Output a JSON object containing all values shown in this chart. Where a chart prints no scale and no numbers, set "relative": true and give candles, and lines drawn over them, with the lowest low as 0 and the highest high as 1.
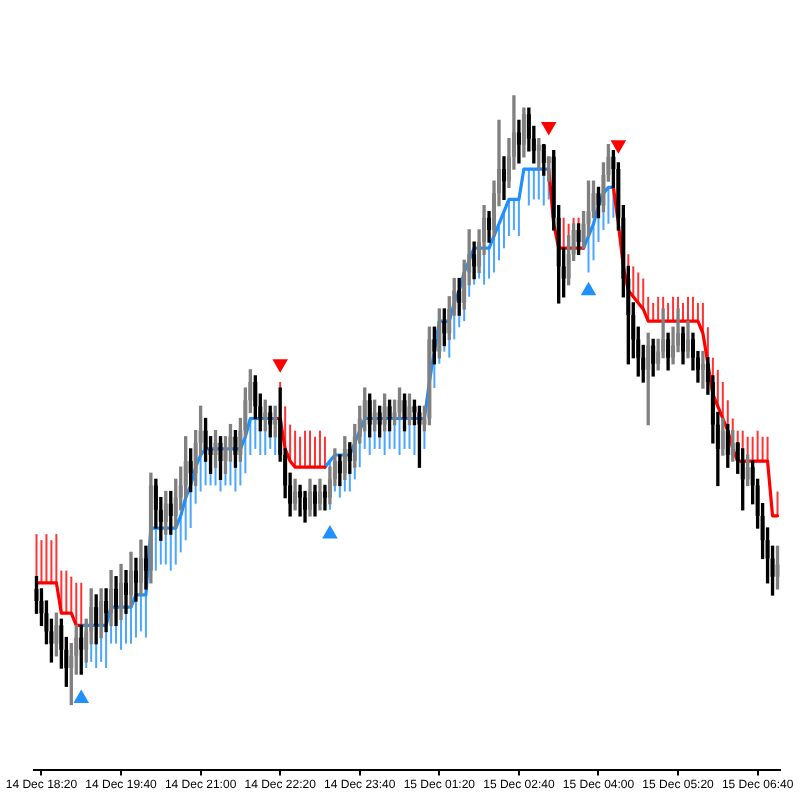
{
  "chart_data": {
    "type": "candlestick",
    "relative": true,
    "categories": [
      null,
      "14 Dec 18:20",
      null,
      null,
      null,
      null,
      null,
      null,
      null,
      null,
      null,
      null,
      null,
      null,
      null,
      null,
      null,
      "14 Dec 19:40",
      null,
      null,
      null,
      null,
      null,
      null,
      null,
      null,
      null,
      null,
      null,
      null,
      null,
      null,
      null,
      "14 Dec 21:00",
      null,
      null,
      null,
      null,
      null,
      null,
      null,
      null,
      null,
      null,
      null,
      null,
      null,
      null,
      null,
      "14 Dec 22:20",
      null,
      null,
      null,
      null,
      null,
      null,
      null,
      null,
      null,
      null,
      null,
      null,
      null,
      null,
      null,
      "14 Dec 23:40",
      null,
      null,
      null,
      null,
      null,
      null,
      null,
      null,
      null,
      null,
      null,
      null,
      null,
      null,
      null,
      "15 Dec 01:20",
      null,
      null,
      null,
      null,
      null,
      null,
      null,
      null,
      null,
      null,
      null,
      null,
      null,
      null,
      null,
      "15 Dec 02:40",
      null,
      null,
      null,
      null,
      null,
      null,
      null,
      null,
      null,
      null,
      null,
      null,
      null,
      null,
      null,
      "15 Dec 04:00",
      null,
      null,
      null,
      null,
      null,
      null,
      null,
      null,
      null,
      null,
      null,
      null,
      null,
      null,
      null,
      "15 Dec 05:20",
      null,
      null,
      null,
      null,
      null,
      null,
      null,
      null,
      null,
      null,
      null,
      null,
      null,
      null,
      null,
      "15 Dec 06:40",
      null,
      null,
      null,
      null
    ],
    "ohlc": [
      [
        0.19,
        0.21,
        0.15,
        0.17
      ],
      [
        0.17,
        0.19,
        0.13,
        0.15
      ],
      [
        0.15,
        0.17,
        0.1,
        0.12
      ],
      [
        0.12,
        0.14,
        0.07,
        0.1
      ],
      [
        0.1,
        0.15,
        0.08,
        0.13
      ],
      [
        0.13,
        0.14,
        0.06,
        0.09
      ],
      [
        0.09,
        0.11,
        0.03,
        0.06
      ],
      [
        0.06,
        0.1,
        0,
        0.08
      ],
      [
        0.08,
        0.13,
        0.05,
        0.11
      ],
      [
        0.11,
        0.13,
        0.05,
        0.09
      ],
      [
        0.09,
        0.14,
        0.07,
        0.12
      ],
      [
        0.12,
        0.19,
        0.1,
        0.16
      ],
      [
        0.16,
        0.18,
        0.1,
        0.13
      ],
      [
        0.13,
        0.19,
        0.11,
        0.17
      ],
      [
        0.17,
        0.19,
        0.12,
        0.15
      ],
      [
        0.15,
        0.22,
        0.13,
        0.19
      ],
      [
        0.19,
        0.21,
        0.13,
        0.16
      ],
      [
        0.16,
        0.23,
        0.14,
        0.2
      ],
      [
        0.2,
        0.22,
        0.15,
        0.18
      ],
      [
        0.18,
        0.25,
        0.16,
        0.22
      ],
      [
        0.22,
        0.24,
        0.17,
        0.2
      ],
      [
        0.2,
        0.27,
        0.18,
        0.24
      ],
      [
        0.24,
        0.26,
        0.19,
        0.22
      ],
      [
        0.22,
        0.38,
        0.2,
        0.36
      ],
      [
        0.36,
        0.37,
        0.29,
        0.32
      ],
      [
        0.32,
        0.34,
        0.27,
        0.3
      ],
      [
        0.3,
        0.35,
        0.28,
        0.33
      ],
      [
        0.33,
        0.35,
        0.28,
        0.31
      ],
      [
        0.31,
        0.37,
        0.29,
        0.34
      ],
      [
        0.34,
        0.39,
        0.32,
        0.36
      ],
      [
        0.36,
        0.44,
        0.34,
        0.4
      ],
      [
        0.4,
        0.42,
        0.35,
        0.38
      ],
      [
        0.38,
        0.45,
        0.36,
        0.43
      ],
      [
        0.43,
        0.49,
        0.41,
        0.45
      ],
      [
        0.45,
        0.47,
        0.4,
        0.42
      ],
      [
        0.42,
        0.44,
        0.38,
        0.41
      ],
      [
        0.41,
        0.45,
        0.39,
        0.43
      ],
      [
        0.43,
        0.44,
        0.37,
        0.4
      ],
      [
        0.4,
        0.44,
        0.38,
        0.42
      ],
      [
        0.42,
        0.46,
        0.4,
        0.44
      ],
      [
        0.44,
        0.45,
        0.39,
        0.41
      ],
      [
        0.41,
        0.47,
        0.4,
        0.45
      ],
      [
        0.45,
        0.52,
        0.44,
        0.5
      ],
      [
        0.5,
        0.55,
        0.48,
        0.53
      ],
      [
        0.53,
        0.54,
        0.47,
        0.49
      ],
      [
        0.49,
        0.51,
        0.45,
        0.47
      ],
      [
        0.47,
        0.5,
        0.45,
        0.48
      ],
      [
        0.48,
        0.49,
        0.44,
        0.46
      ],
      [
        0.46,
        0.49,
        0.44,
        0.47
      ],
      [
        0.47,
        0.52,
        0.4,
        0.41
      ],
      [
        0.41,
        0.42,
        0.34,
        0.36
      ],
      [
        0.36,
        0.38,
        0.31,
        0.33
      ],
      [
        0.33,
        0.37,
        0.32,
        0.35
      ],
      [
        0.35,
        0.36,
        0.31,
        0.34
      ],
      [
        0.34,
        0.35,
        0.3,
        0.32
      ],
      [
        0.32,
        0.37,
        0.31,
        0.35
      ],
      [
        0.35,
        0.36,
        0.31,
        0.33
      ],
      [
        0.33,
        0.37,
        0.32,
        0.35
      ],
      [
        0.35,
        0.36,
        0.32,
        0.34
      ],
      [
        0.34,
        0.39,
        0.33,
        0.37
      ],
      [
        0.37,
        0.42,
        0.36,
        0.4
      ],
      [
        0.4,
        0.41,
        0.36,
        0.38
      ],
      [
        0.38,
        0.44,
        0.37,
        0.42
      ],
      [
        0.42,
        0.43,
        0.38,
        0.4
      ],
      [
        0.4,
        0.46,
        0.39,
        0.44
      ],
      [
        0.44,
        0.49,
        0.43,
        0.47
      ],
      [
        0.47,
        0.52,
        0.45,
        0.5
      ],
      [
        0.5,
        0.51,
        0.44,
        0.46
      ],
      [
        0.46,
        0.5,
        0.45,
        0.48
      ],
      [
        0.48,
        0.49,
        0.44,
        0.46
      ],
      [
        0.46,
        0.51,
        0.45,
        0.49
      ],
      [
        0.49,
        0.5,
        0.45,
        0.47
      ],
      [
        0.47,
        0.5,
        0.46,
        0.48
      ],
      [
        0.48,
        0.52,
        0.47,
        0.5
      ],
      [
        0.5,
        0.51,
        0.45,
        0.47
      ],
      [
        0.47,
        0.51,
        0.46,
        0.49
      ],
      [
        0.49,
        0.5,
        0.46,
        0.48
      ],
      [
        0.48,
        0.49,
        0.39,
        0.46
      ],
      [
        0.46,
        0.49,
        0.45,
        0.47
      ],
      [
        0.47,
        0.62,
        0.46,
        0.6
      ],
      [
        0.6,
        0.62,
        0.56,
        0.58
      ],
      [
        0.58,
        0.65,
        0.57,
        0.63
      ],
      [
        0.63,
        0.65,
        0.59,
        0.61
      ],
      [
        0.61,
        0.67,
        0.6,
        0.65
      ],
      [
        0.65,
        0.7,
        0.64,
        0.68
      ],
      [
        0.68,
        0.7,
        0.64,
        0.66
      ],
      [
        0.66,
        0.73,
        0.65,
        0.71
      ],
      [
        0.71,
        0.78,
        0.69,
        0.74
      ],
      [
        0.74,
        0.76,
        0.7,
        0.72
      ],
      [
        0.72,
        0.78,
        0.71,
        0.76
      ],
      [
        0.76,
        0.82,
        0.74,
        0.8
      ],
      [
        0.8,
        0.81,
        0.76,
        0.78
      ],
      [
        0.78,
        0.86,
        0.77,
        0.84
      ],
      [
        0.84,
        0.96,
        0.82,
        0.88
      ],
      [
        0.88,
        0.9,
        0.83,
        0.86
      ],
      [
        0.86,
        0.93,
        0.85,
        0.9
      ],
      [
        0.9,
        1,
        0.88,
        0.94
      ],
      [
        0.94,
        0.96,
        0.89,
        0.92
      ],
      [
        0.92,
        0.98,
        0.9,
        0.97
      ],
      [
        0.97,
        0.98,
        0.91,
        0.93
      ],
      [
        0.93,
        0.95,
        0.89,
        0.91
      ],
      [
        0.91,
        0.93,
        0.88,
        0.92
      ],
      [
        0.92,
        0.92,
        0.87,
        0.89
      ],
      [
        0.89,
        0.9,
        0.86,
        0.9
      ],
      [
        0.9,
        0.91,
        0.78,
        0.8
      ],
      [
        0.8,
        0.82,
        0.66,
        0.72
      ],
      [
        0.72,
        0.75,
        0.67,
        0.7
      ],
      [
        0.7,
        0.77,
        0.69,
        0.74
      ],
      [
        0.74,
        0.79,
        0.73,
        0.78
      ],
      [
        0.78,
        0.79,
        0.74,
        0.76
      ],
      [
        0.76,
        0.81,
        0.75,
        0.79
      ],
      [
        0.79,
        0.86,
        0.77,
        0.81
      ],
      [
        0.81,
        0.86,
        0.8,
        0.84
      ],
      [
        0.84,
        0.85,
        0.8,
        0.82
      ],
      [
        0.82,
        0.89,
        0.81,
        0.87
      ],
      [
        0.87,
        0.92,
        0.86,
        0.9
      ],
      [
        0.9,
        0.91,
        0.85,
        0.88
      ],
      [
        0.88,
        0.89,
        0.78,
        0.8
      ],
      [
        0.8,
        0.82,
        0.67,
        0.7
      ],
      [
        0.7,
        0.72,
        0.56,
        0.64
      ],
      [
        0.64,
        0.66,
        0.57,
        0.6
      ],
      [
        0.6,
        0.62,
        0.54,
        0.57
      ],
      [
        0.57,
        0.59,
        0.53,
        0.55
      ],
      [
        0.55,
        0.61,
        0.46,
        0.59
      ],
      [
        0.59,
        0.6,
        0.54,
        0.56
      ],
      [
        0.56,
        0.6,
        0.55,
        0.58
      ],
      [
        0.58,
        0.65,
        0.57,
        0.6
      ],
      [
        0.6,
        0.61,
        0.55,
        0.57
      ],
      [
        0.57,
        0.62,
        0.56,
        0.59
      ],
      [
        0.59,
        0.65,
        0.58,
        0.61
      ],
      [
        0.61,
        0.62,
        0.56,
        0.58
      ],
      [
        0.58,
        0.63,
        0.57,
        0.6
      ],
      [
        0.6,
        0.61,
        0.55,
        0.57
      ],
      [
        0.57,
        0.58,
        0.53,
        0.55
      ],
      [
        0.55,
        0.58,
        0.52,
        0.56
      ],
      [
        0.56,
        0.57,
        0.51,
        0.53
      ],
      [
        0.53,
        0.54,
        0.43,
        0.46
      ],
      [
        0.46,
        0.48,
        0.36,
        0.42
      ],
      [
        0.42,
        0.47,
        0.41,
        0.45
      ],
      [
        0.45,
        0.46,
        0.39,
        0.41
      ],
      [
        0.41,
        0.45,
        0.4,
        0.43
      ],
      [
        0.43,
        0.43,
        0.38,
        0.4
      ],
      [
        0.4,
        0.42,
        0.32,
        0.37
      ],
      [
        0.37,
        0.41,
        0.36,
        0.39
      ],
      [
        0.39,
        0.4,
        0.33,
        0.36
      ],
      [
        0.36,
        0.37,
        0.29,
        0.31
      ],
      [
        0.31,
        0.33,
        0.24,
        0.27
      ],
      [
        0.27,
        0.29,
        0.2,
        0.24
      ],
      [
        0.24,
        0.26,
        0.18,
        0.21
      ],
      [
        0.21,
        0.26,
        0.19,
        0.23
      ]
    ],
    "colors": [
      "#000000",
      "#000000",
      "#000000",
      "#000000",
      "#808080",
      "#000000",
      "#000000",
      "#808080",
      "#808080",
      "#000000",
      "#808080",
      "#808080",
      "#000000",
      "#808080",
      "#000000",
      "#808080",
      "#000000",
      "#808080",
      "#000000",
      "#808080",
      "#000000",
      "#808080",
      "#000000",
      "#808080",
      "#000000",
      "#000000",
      "#808080",
      "#000000",
      "#808080",
      "#808080",
      "#808080",
      "#000000",
      "#808080",
      "#808080",
      "#000000",
      "#000000",
      "#808080",
      "#000000",
      "#808080",
      "#808080",
      "#000000",
      "#808080",
      "#808080",
      "#808080",
      "#000000",
      "#000000",
      "#808080",
      "#000000",
      "#808080",
      "#000000",
      "#000000",
      "#000000",
      "#808080",
      "#000000",
      "#000000",
      "#808080",
      "#000000",
      "#808080",
      "#000000",
      "#808080",
      "#808080",
      "#000000",
      "#808080",
      "#000000",
      "#808080",
      "#808080",
      "#808080",
      "#000000",
      "#808080",
      "#000000",
      "#808080",
      "#000000",
      "#808080",
      "#808080",
      "#000000",
      "#808080",
      "#000000",
      "#000000",
      "#808080",
      "#808080",
      "#000000",
      "#808080",
      "#000000",
      "#808080",
      "#808080",
      "#000000",
      "#808080",
      "#808080",
      "#000000",
      "#808080",
      "#808080",
      "#000000",
      "#808080",
      "#808080",
      "#000000",
      "#808080",
      "#808080",
      "#000000",
      "#808080",
      "#000000",
      "#000000",
      "#808080",
      "#000000",
      "#808080",
      "#000000",
      "#000000",
      "#000000",
      "#808080",
      "#808080",
      "#000000",
      "#808080",
      "#808080",
      "#808080",
      "#000000",
      "#808080",
      "#808080",
      "#000000",
      "#000000",
      "#000000",
      "#000000",
      "#000000",
      "#000000",
      "#000000",
      "#808080",
      "#000000",
      "#808080",
      "#808080",
      "#000000",
      "#808080",
      "#808080",
      "#000000",
      "#808080",
      "#000000",
      "#000000",
      "#808080",
      "#000000",
      "#000000",
      "#000000",
      "#808080",
      "#000000",
      "#808080",
      "#000000",
      "#000000",
      "#808080",
      "#000000",
      "#000000",
      "#000000",
      "#000000",
      "#000000",
      "#808080"
    ],
    "series": [
      {
        "type": "line",
        "color": "#ff0000",
        "values": [
          0.2,
          0.2,
          0.2,
          0.2,
          0.2,
          0.15,
          0.15,
          0.15,
          0.13,
          0.13,
          null,
          null,
          null,
          null,
          null,
          null,
          null,
          null,
          null,
          null,
          null,
          null,
          null,
          null,
          null,
          null,
          null,
          null,
          null,
          null,
          null,
          null,
          null,
          null,
          null,
          null,
          null,
          null,
          null,
          null,
          null,
          null,
          null,
          null,
          null,
          null,
          null,
          null,
          0.47,
          0.47,
          0.42,
          0.4,
          0.39,
          0.39,
          0.39,
          0.39,
          0.39,
          0.39,
          0.39,
          null,
          null,
          null,
          null,
          null,
          null,
          null,
          null,
          null,
          null,
          null,
          null,
          null,
          null,
          null,
          null,
          null,
          null,
          null,
          null,
          null,
          null,
          null,
          null,
          null,
          null,
          null,
          null,
          null,
          null,
          null,
          null,
          null,
          null,
          null,
          null,
          null,
          null,
          null,
          null,
          null,
          null,
          null,
          null,
          0.88,
          0.79,
          0.75,
          0.75,
          0.75,
          0.75,
          0.75,
          0.75,
          null,
          null,
          null,
          null,
          null,
          0.85,
          0.79,
          0.72,
          0.68,
          0.67,
          0.66,
          0.65,
          0.63,
          0.63,
          0.63,
          0.63,
          0.63,
          0.63,
          0.63,
          0.63,
          0.63,
          0.63,
          0.63,
          0.61,
          0.56,
          0.51,
          0.49,
          0.47,
          0.45,
          0.42,
          0.4,
          0.4,
          0.4,
          0.4,
          0.4,
          0.4,
          0.4,
          0.31,
          0.31
        ],
        "errors": [
          [
            0.2,
            0.28
          ],
          [
            0.2,
            0.27
          ],
          [
            0.2,
            0.28
          ],
          [
            0.2,
            0.27
          ],
          [
            0.2,
            0.28
          ],
          [
            0.15,
            0.22
          ],
          [
            0.15,
            0.22
          ],
          [
            0.15,
            0.21
          ],
          [
            0.13,
            0.2
          ],
          [
            0.13,
            0.2
          ],
          null,
          null,
          null,
          null,
          null,
          null,
          null,
          null,
          null,
          null,
          null,
          null,
          null,
          null,
          null,
          null,
          null,
          null,
          null,
          null,
          null,
          null,
          null,
          null,
          null,
          null,
          null,
          null,
          null,
          null,
          null,
          null,
          null,
          null,
          null,
          null,
          null,
          null,
          null,
          [
            0.47,
            0.53
          ],
          [
            0.42,
            0.49
          ],
          [
            0.4,
            0.46
          ],
          [
            0.39,
            0.45
          ],
          [
            0.39,
            0.44
          ],
          [
            0.39,
            0.45
          ],
          [
            0.39,
            0.45
          ],
          [
            0.39,
            0.44
          ],
          [
            0.39,
            0.45
          ],
          [
            0.39,
            0.44
          ],
          null,
          null,
          null,
          null,
          null,
          null,
          null,
          null,
          null,
          null,
          null,
          null,
          null,
          null,
          null,
          null,
          null,
          null,
          null,
          null,
          null,
          null,
          null,
          null,
          null,
          null,
          null,
          null,
          null,
          null,
          null,
          null,
          null,
          null,
          null,
          null,
          null,
          null,
          null,
          null,
          null,
          null,
          null,
          null,
          null,
          null,
          null,
          [
            0.75,
            0.8
          ],
          [
            0.75,
            0.79
          ],
          [
            0.75,
            0.8
          ],
          [
            0.75,
            0.8
          ],
          null,
          null,
          null,
          null,
          null,
          null,
          null,
          null,
          null,
          [
            0.68,
            0.74
          ],
          [
            0.67,
            0.72
          ],
          [
            0.66,
            0.71
          ],
          [
            0.65,
            0.7
          ],
          [
            0.63,
            0.67
          ],
          [
            0.63,
            0.66
          ],
          [
            0.63,
            0.67
          ],
          [
            0.63,
            0.67
          ],
          [
            0.63,
            0.66
          ],
          [
            0.63,
            0.67
          ],
          [
            0.63,
            0.67
          ],
          [
            0.63,
            0.66
          ],
          [
            0.63,
            0.67
          ],
          [
            0.63,
            0.67
          ],
          [
            0.63,
            0.66
          ],
          [
            0.61,
            0.66
          ],
          [
            0.56,
            0.62
          ],
          [
            0.51,
            0.57
          ],
          [
            0.49,
            0.55
          ],
          [
            0.47,
            0.53
          ],
          [
            0.45,
            0.5
          ],
          [
            0.42,
            0.47
          ],
          [
            0.4,
            0.45
          ],
          [
            0.4,
            0.45
          ],
          [
            0.4,
            0.44
          ],
          [
            0.4,
            0.44
          ],
          [
            0.4,
            0.45
          ],
          [
            0.4,
            0.44
          ],
          [
            0.4,
            0.44
          ],
          null,
          [
            0.31,
            0.35
          ]
        ]
      },
      {
        "type": "line",
        "color": "#1e90ff",
        "values": [
          null,
          null,
          null,
          null,
          null,
          null,
          null,
          null,
          null,
          0.13,
          0.13,
          0.13,
          0.13,
          0.13,
          0.13,
          0.16,
          0.16,
          0.16,
          0.16,
          0.16,
          0.18,
          0.18,
          0.18,
          0.29,
          0.29,
          0.29,
          0.29,
          0.29,
          0.29,
          0.31,
          0.34,
          0.36,
          0.39,
          0.41,
          0.42,
          0.42,
          0.42,
          0.42,
          0.42,
          0.42,
          0.42,
          0.42,
          0.44,
          0.47,
          0.47,
          0.47,
          0.47,
          0.47,
          0.47,
          null,
          null,
          null,
          null,
          null,
          null,
          null,
          null,
          null,
          0.39,
          0.4,
          0.41,
          0.41,
          0.41,
          0.41,
          0.43,
          0.45,
          0.47,
          0.47,
          0.47,
          0.47,
          0.47,
          0.47,
          0.47,
          0.47,
          0.47,
          0.47,
          0.47,
          0.47,
          0.47,
          0.53,
          0.58,
          0.63,
          0.63,
          0.63,
          0.66,
          0.68,
          0.71,
          0.73,
          0.75,
          0.75,
          0.75,
          0.75,
          0.77,
          0.79,
          0.81,
          0.83,
          0.83,
          0.83,
          0.88,
          0.88,
          0.88,
          0.88,
          0.88,
          0.88,
          null,
          null,
          null,
          null,
          null,
          null,
          0.75,
          0.77,
          0.79,
          0.82,
          0.84,
          0.85,
          0.85,
          null,
          null,
          null,
          null,
          null,
          null,
          null,
          null,
          null,
          null,
          null,
          null,
          null,
          null,
          null,
          null,
          null,
          null,
          null,
          null,
          null,
          null,
          null,
          null,
          null,
          null,
          null,
          null,
          null,
          null,
          null,
          null,
          null
        ],
        "errors": [
          null,
          null,
          null,
          null,
          null,
          null,
          null,
          null,
          null,
          null,
          [
            0.06,
            0.13
          ],
          [
            0.07,
            0.13
          ],
          [
            0.06,
            0.13
          ],
          [
            0.07,
            0.13
          ],
          [
            0.06,
            0.13
          ],
          [
            0.1,
            0.16
          ],
          [
            0.1,
            0.16
          ],
          [
            0.09,
            0.16
          ],
          [
            0.1,
            0.16
          ],
          [
            0.1,
            0.16
          ],
          [
            0.11,
            0.18
          ],
          [
            0.12,
            0.18
          ],
          [
            0.11,
            0.18
          ],
          null,
          [
            0.22,
            0.29
          ],
          [
            0.23,
            0.29
          ],
          [
            0.23,
            0.29
          ],
          [
            0.22,
            0.29
          ],
          [
            0.23,
            0.29
          ],
          [
            0.25,
            0.31
          ],
          [
            0.27,
            0.34
          ],
          [
            0.29,
            0.36
          ],
          [
            0.33,
            0.39
          ],
          [
            0.35,
            0.41
          ],
          [
            0.36,
            0.42
          ],
          [
            0.36,
            0.42
          ],
          [
            0.36,
            0.42
          ],
          [
            0.35,
            0.42
          ],
          [
            0.36,
            0.42
          ],
          [
            0.36,
            0.42
          ],
          [
            0.35,
            0.42
          ],
          [
            0.36,
            0.42
          ],
          [
            0.38,
            0.44
          ],
          [
            0.41,
            0.47
          ],
          [
            0.42,
            0.47
          ],
          [
            0.41,
            0.47
          ],
          [
            0.41,
            0.47
          ],
          [
            0.42,
            0.47
          ],
          [
            0.41,
            0.47
          ],
          null,
          null,
          null,
          null,
          null,
          null,
          null,
          null,
          null,
          null,
          [
            0.32,
            0.4
          ],
          [
            0.35,
            0.41
          ],
          [
            0.34,
            0.41
          ],
          [
            0.35,
            0.41
          ],
          [
            0.35,
            0.41
          ],
          [
            0.37,
            0.43
          ],
          [
            0.39,
            0.45
          ],
          [
            0.42,
            0.47
          ],
          [
            0.41,
            0.47
          ],
          [
            0.42,
            0.47
          ],
          [
            0.42,
            0.47
          ],
          [
            0.41,
            0.47
          ],
          [
            0.42,
            0.47
          ],
          [
            0.42,
            0.47
          ],
          [
            0.41,
            0.47
          ],
          [
            0.42,
            0.47
          ],
          [
            0.42,
            0.47
          ],
          [
            0.41,
            0.47
          ],
          null,
          [
            0.42,
            0.47
          ],
          null,
          [
            0.52,
            0.58
          ],
          [
            0.56,
            0.63
          ],
          [
            0.58,
            0.63
          ],
          [
            0.57,
            0.63
          ],
          [
            0.6,
            0.66
          ],
          [
            0.62,
            0.68
          ],
          [
            0.63,
            0.71
          ],
          [
            0.67,
            0.73
          ],
          [
            0.69,
            0.75
          ],
          [
            0.7,
            0.75
          ],
          [
            0.69,
            0.75
          ],
          [
            0.7,
            0.75
          ],
          [
            0.71,
            0.77
          ],
          [
            0.73,
            0.79
          ],
          [
            0.75,
            0.81
          ],
          [
            0.77,
            0.83
          ],
          [
            0.78,
            0.83
          ],
          [
            0.77,
            0.83
          ],
          null,
          [
            0.82,
            0.88
          ],
          [
            0.83,
            0.88
          ],
          [
            0.83,
            0.88
          ],
          [
            0.82,
            0.88
          ],
          [
            0.83,
            0.88
          ],
          null,
          null,
          null,
          null,
          null,
          null,
          null,
          [
            0.71,
            0.77
          ],
          [
            0.73,
            0.79
          ],
          [
            0.76,
            0.82
          ],
          [
            0.78,
            0.84
          ],
          [
            0.79,
            0.85
          ],
          [
            0.8,
            0.85
          ],
          null,
          null,
          null,
          null,
          null,
          null,
          null,
          null,
          null,
          null,
          null,
          null,
          null,
          null,
          null,
          null,
          null,
          null,
          null,
          null,
          null,
          null,
          null,
          null,
          null,
          null,
          null,
          null,
          null,
          null,
          null,
          null,
          null
        ]
      },
      {
        "type": "scatter",
        "color": "#1e90ff",
        "marker": "triangle",
        "values": [
          null,
          null,
          null,
          null,
          null,
          null,
          null,
          null,
          null,
          0.01,
          null,
          null,
          null,
          null,
          null,
          null,
          null,
          null,
          null,
          null,
          null,
          null,
          null,
          null,
          null,
          null,
          null,
          null,
          null,
          null,
          null,
          null,
          null,
          null,
          null,
          null,
          null,
          null,
          null,
          null,
          null,
          null,
          null,
          null,
          null,
          null,
          null,
          null,
          null,
          null,
          null,
          null,
          null,
          null,
          null,
          null,
          null,
          null,
          null,
          0.28,
          null,
          null,
          null,
          null,
          null,
          null,
          null,
          null,
          null,
          null,
          null,
          null,
          null,
          null,
          null,
          null,
          null,
          null,
          null,
          null,
          null,
          null,
          null,
          null,
          null,
          null,
          null,
          null,
          null,
          null,
          null,
          null,
          null,
          null,
          null,
          null,
          null,
          null,
          null,
          null,
          null,
          null,
          null,
          null,
          null,
          null,
          null,
          null,
          null,
          null,
          null,
          0.68,
          null,
          null,
          null,
          null,
          null,
          null,
          null,
          null,
          null,
          null,
          null,
          null,
          null,
          null,
          null,
          null,
          null,
          null,
          null,
          null,
          null,
          null,
          null,
          null,
          null,
          null,
          null,
          null,
          null,
          null,
          null,
          null,
          null,
          null,
          null,
          null,
          null,
          null
        ]
      },
      {
        "type": "scatter",
        "color": "#ff0000",
        "marker": "triangle",
        "values": [
          null,
          null,
          null,
          null,
          null,
          null,
          null,
          null,
          null,
          null,
          null,
          null,
          null,
          null,
          null,
          null,
          null,
          null,
          null,
          null,
          null,
          null,
          null,
          null,
          null,
          null,
          null,
          null,
          null,
          null,
          null,
          null,
          null,
          null,
          null,
          null,
          null,
          null,
          null,
          null,
          null,
          null,
          null,
          null,
          null,
          null,
          null,
          null,
          null,
          0.56,
          null,
          null,
          null,
          null,
          null,
          null,
          null,
          null,
          null,
          null,
          null,
          null,
          null,
          null,
          null,
          null,
          null,
          null,
          null,
          null,
          null,
          null,
          null,
          null,
          null,
          null,
          null,
          null,
          null,
          null,
          null,
          null,
          null,
          null,
          null,
          null,
          null,
          null,
          null,
          null,
          null,
          null,
          null,
          null,
          null,
          null,
          null,
          null,
          null,
          null,
          null,
          null,
          null,
          0.95,
          null,
          null,
          null,
          null,
          null,
          null,
          null,
          null,
          null,
          null,
          null,
          null,
          null,
          0.92,
          null,
          null,
          null,
          null,
          null,
          null,
          null,
          null,
          null,
          null,
          null,
          null,
          null,
          null,
          null,
          null,
          null,
          null,
          null,
          null,
          null,
          null,
          null,
          null,
          null,
          null,
          null,
          null,
          null,
          null,
          null,
          null
        ]
      }
    ]
  }
}
